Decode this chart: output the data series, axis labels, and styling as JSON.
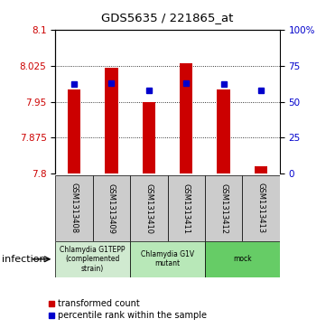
{
  "title": "GDS5635 / 221865_at",
  "samples": [
    "GSM1313408",
    "GSM1313409",
    "GSM1313410",
    "GSM1313411",
    "GSM1313412",
    "GSM1313413"
  ],
  "red_values": [
    7.975,
    8.02,
    7.95,
    8.03,
    7.975,
    7.815
  ],
  "blue_values": [
    62,
    63,
    58,
    63,
    62,
    58
  ],
  "y_min": 7.8,
  "y_max": 8.1,
  "y_ticks": [
    7.8,
    7.875,
    7.95,
    8.025,
    8.1
  ],
  "y_ticks_right": [
    0,
    25,
    50,
    75,
    100
  ],
  "groups": [
    {
      "label": "Chlamydia G1TEPP\n(complemented\nstrain)",
      "start": 0,
      "end": 2,
      "color": "#d0ead0"
    },
    {
      "label": "Chlamydia G1V\nmutant",
      "start": 2,
      "end": 4,
      "color": "#b8e8b8"
    },
    {
      "label": "mock",
      "start": 4,
      "end": 6,
      "color": "#66cc66"
    }
  ],
  "bar_color": "#cc0000",
  "dot_color": "#0000cc",
  "bar_width": 0.35,
  "left_label_color": "#cc0000",
  "right_label_color": "#0000cc",
  "infection_label": "infection",
  "legend_red": "transformed count",
  "legend_blue": "percentile rank within the sample",
  "sample_box_color": "#cccccc"
}
